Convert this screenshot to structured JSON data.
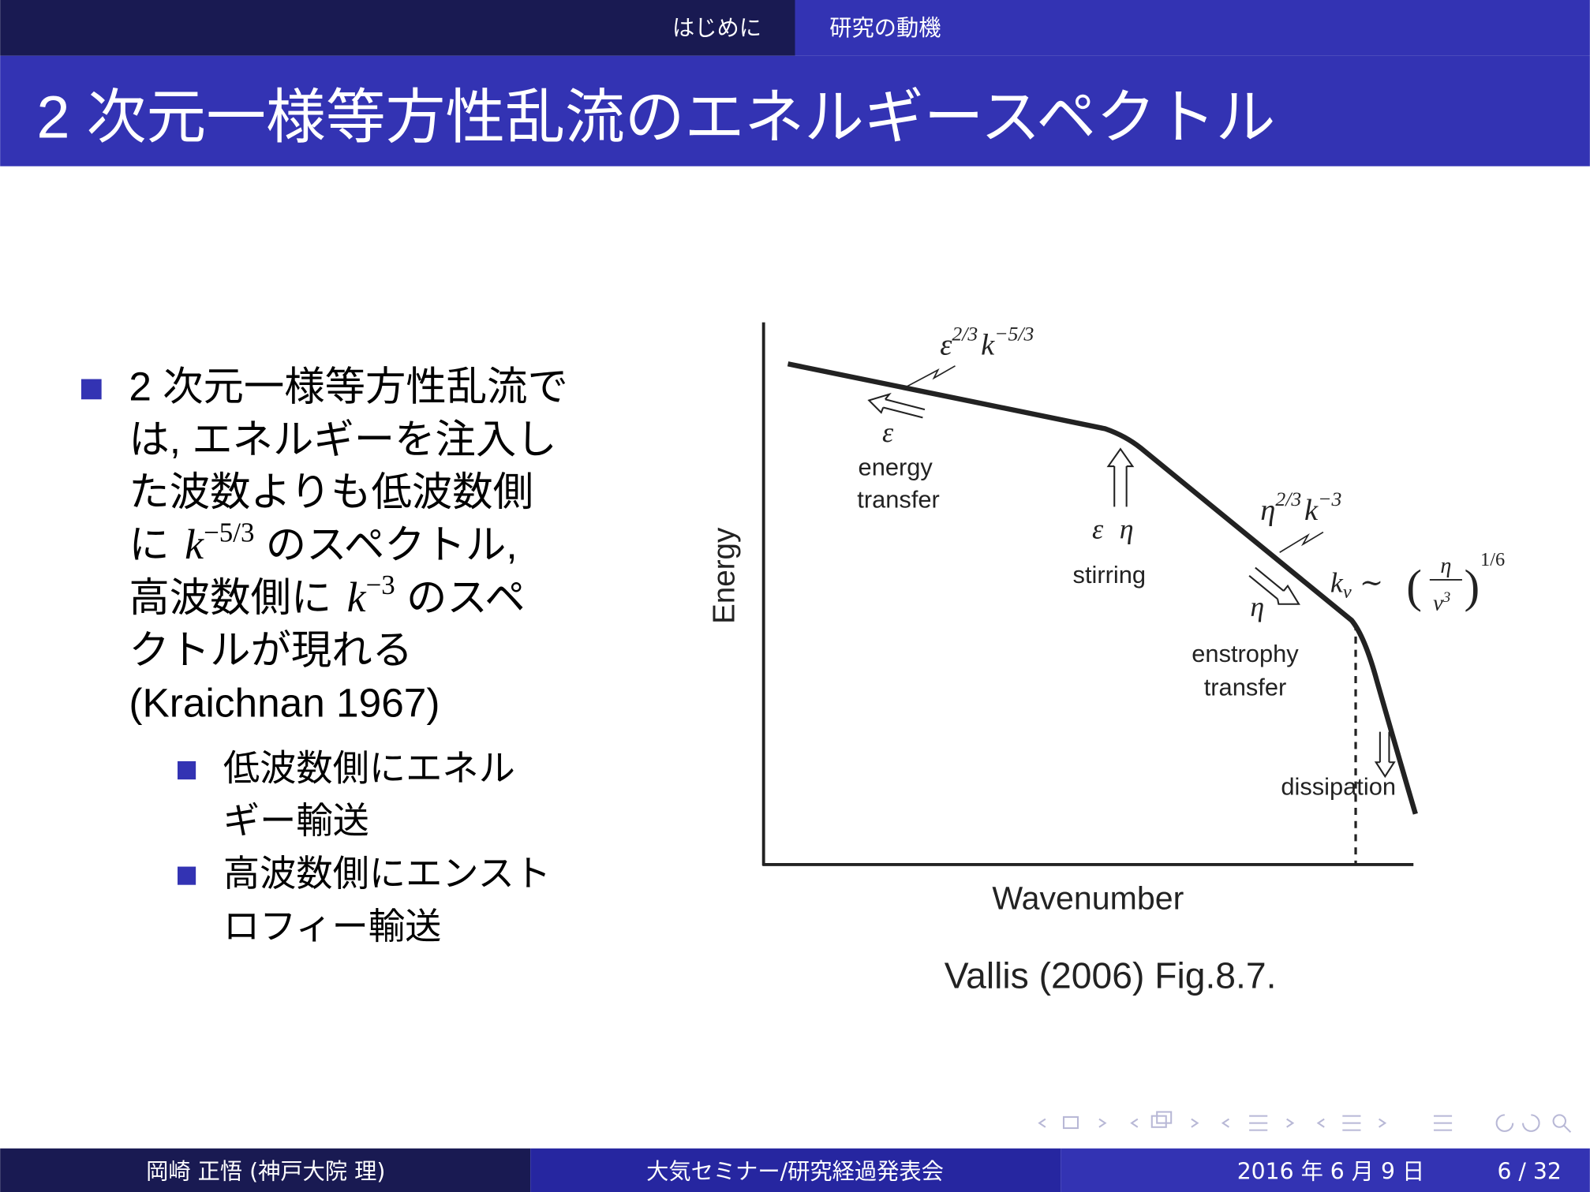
{
  "nav": {
    "sections": [
      "はじめに",
      "研究の動機"
    ]
  },
  "title": "2 次元一様等方性乱流のエネルギースペクトル",
  "body": {
    "items": [
      {
        "lines": [
          [
            {
              "text": "2 次元一様等方性乱流で"
            }
          ],
          [
            {
              "text": "は, エネルギーを注入し"
            }
          ],
          [
            {
              "text": "た波数よりも低波数側"
            }
          ],
          [
            {
              "text": "に "
            },
            {
              "math": "k",
              "sup": "−5/3"
            },
            {
              "text": " のスペクトル,"
            }
          ],
          [
            {
              "text": "高波数側に "
            },
            {
              "math": "k",
              "sup": "−3"
            },
            {
              "text": " のスペ"
            }
          ],
          [
            {
              "text": "クトルが現れる"
            }
          ],
          [
            {
              "text": "(Kraichnan 1967)"
            }
          ]
        ],
        "subitems": [
          {
            "lines": [
              [
                {
                  "text": "低波数側にエネル"
                }
              ],
              [
                {
                  "text": "ギー輸送"
                }
              ]
            ]
          },
          {
            "lines": [
              [
                {
                  "text": "高波数側にエンスト"
                }
              ],
              [
                {
                  "text": "ロフィー輸送"
                }
              ]
            ]
          }
        ]
      }
    ]
  },
  "figure": {
    "y_label": "Energy",
    "x_label": "Wavenumber",
    "low_k_law": [
      "ε",
      "2/3",
      "k",
      "−5/3"
    ],
    "energy_flux": "ε",
    "energy_transfer": [
      "energy",
      "transfer"
    ],
    "forcing": [
      "ε",
      "η"
    ],
    "stirring": "stirring",
    "high_k_law": [
      "η",
      "2/3",
      "k",
      "−3"
    ],
    "enstrophy_flux": "η",
    "cutoff": [
      "k",
      "ν",
      "∼",
      "(",
      "η",
      "ν",
      "3",
      ")",
      "1/6"
    ],
    "enstrophy_transfer": [
      "enstrophy",
      "transfer"
    ],
    "dissipation": "dissipation",
    "caption": "Vallis (2006) Fig.8.7."
  },
  "footer": {
    "author": "岡崎 正悟 (神戸大院 理)",
    "event": "大気セミナー/研究経過発表会",
    "date": "2016 年 6 月 9 日",
    "page": "6 / 32"
  }
}
